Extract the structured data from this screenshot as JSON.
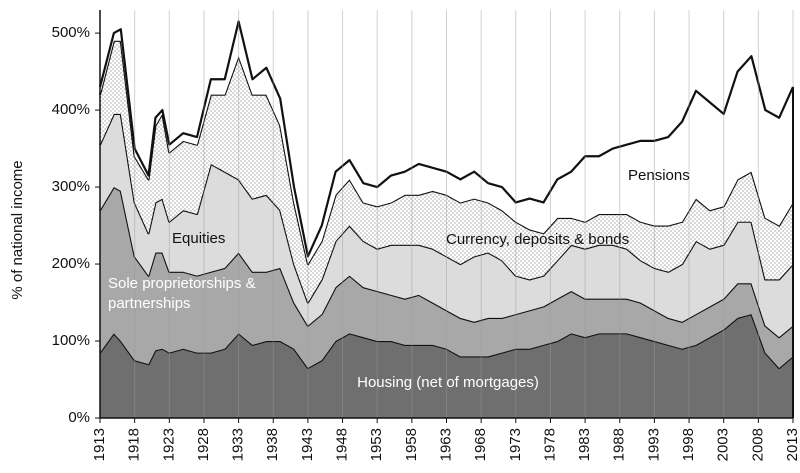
{
  "chart_data": {
    "type": "stacked_area",
    "y_label": "% of national income",
    "x": [
      1913,
      1915,
      1916,
      1918,
      1920,
      1921,
      1922,
      1923,
      1925,
      1927,
      1929,
      1931,
      1933,
      1935,
      1937,
      1939,
      1941,
      1943,
      1945,
      1947,
      1949,
      1951,
      1953,
      1955,
      1957,
      1959,
      1961,
      1963,
      1965,
      1967,
      1969,
      1971,
      1973,
      1975,
      1977,
      1979,
      1981,
      1983,
      1985,
      1987,
      1989,
      1991,
      1993,
      1995,
      1997,
      1999,
      2001,
      2003,
      2005,
      2007,
      2009,
      2011,
      2013
    ],
    "series": [
      {
        "name": "Housing (net of mortgages)",
        "color": "#6f6f6f",
        "label_color": "#ffffff",
        "values": [
          85,
          110,
          100,
          75,
          70,
          88,
          90,
          85,
          90,
          85,
          85,
          90,
          110,
          95,
          100,
          100,
          90,
          65,
          75,
          100,
          110,
          105,
          100,
          100,
          95,
          95,
          95,
          90,
          80,
          80,
          80,
          85,
          90,
          90,
          95,
          100,
          110,
          105,
          110,
          110,
          110,
          105,
          100,
          95,
          90,
          95,
          105,
          115,
          130,
          135,
          85,
          65,
          80
        ]
      },
      {
        "name": "Sole proprietorships & partnerships",
        "color": "#a8a8a8",
        "label_color": "#ffffff",
        "values": [
          185,
          190,
          195,
          135,
          115,
          127,
          125,
          105,
          100,
          100,
          105,
          105,
          105,
          95,
          90,
          95,
          60,
          55,
          60,
          70,
          75,
          65,
          65,
          60,
          60,
          65,
          55,
          50,
          50,
          45,
          50,
          45,
          45,
          50,
          50,
          55,
          55,
          50,
          45,
          45,
          45,
          45,
          40,
          35,
          35,
          40,
          40,
          40,
          45,
          40,
          35,
          40,
          40
        ]
      },
      {
        "name": "Equities",
        "color": "#dcdcdc",
        "label_color": "#111111",
        "values": [
          85,
          95,
          100,
          70,
          55,
          65,
          70,
          65,
          80,
          80,
          140,
          125,
          95,
          95,
          100,
          75,
          50,
          30,
          45,
          60,
          65,
          60,
          55,
          65,
          70,
          65,
          70,
          70,
          70,
          85,
          85,
          75,
          50,
          40,
          40,
          50,
          60,
          65,
          70,
          70,
          65,
          55,
          55,
          60,
          75,
          95,
          75,
          70,
          80,
          80,
          60,
          75,
          80
        ]
      },
      {
        "name": "Currency, deposits & bonds",
        "color": "#ffffff",
        "pattern": "dots",
        "label_color": "#111111",
        "values": [
          65,
          95,
          95,
          60,
          70,
          100,
          110,
          90,
          90,
          90,
          90,
          100,
          160,
          135,
          130,
          110,
          80,
          50,
          50,
          60,
          60,
          50,
          55,
          55,
          65,
          65,
          75,
          80,
          80,
          75,
          65,
          65,
          70,
          65,
          55,
          55,
          35,
          35,
          40,
          40,
          45,
          50,
          55,
          60,
          55,
          55,
          50,
          50,
          55,
          65,
          80,
          70,
          80
        ]
      },
      {
        "name": "Pensions",
        "color": "#ffffff",
        "label_color": "#111111",
        "values": [
          10,
          10,
          15,
          10,
          5,
          10,
          5,
          10,
          10,
          10,
          20,
          20,
          45,
          20,
          35,
          35,
          20,
          10,
          20,
          30,
          25,
          25,
          25,
          35,
          30,
          40,
          30,
          30,
          30,
          35,
          25,
          30,
          25,
          40,
          40,
          50,
          60,
          85,
          75,
          85,
          90,
          105,
          110,
          115,
          130,
          140,
          140,
          120,
          140,
          150,
          140,
          140,
          150
        ]
      }
    ],
    "xlim": [
      1913,
      2013
    ],
    "xticks": [
      1913,
      1918,
      1923,
      1928,
      1933,
      1938,
      1943,
      1948,
      1953,
      1958,
      1963,
      1968,
      1973,
      1978,
      1983,
      1988,
      1993,
      1998,
      2003,
      2008,
      2013
    ],
    "ylim": [
      0,
      530
    ],
    "yticks": [
      {
        "value": 0,
        "label": "0%"
      },
      {
        "value": 100,
        "label": "100%"
      },
      {
        "value": 200,
        "label": "200%"
      },
      {
        "value": 300,
        "label": "300%"
      },
      {
        "value": 400,
        "label": "400%"
      },
      {
        "value": 500,
        "label": "500%"
      }
    ],
    "grid": "x"
  }
}
